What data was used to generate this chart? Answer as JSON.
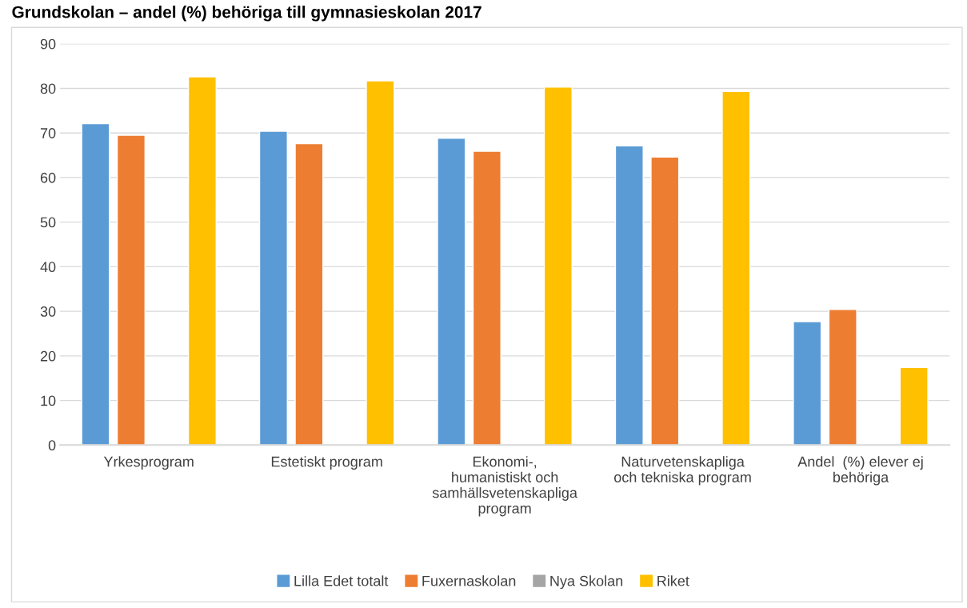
{
  "chart_data": {
    "type": "bar",
    "title": "Grundskolan – andel (%) behöriga till gymnasieskolan 2017",
    "categories": [
      "Yrkesprogram",
      "Estetiskt program",
      "Ekonomi-,\nhumanistiskt och\nsamhällsvetenskapliga\nprogram",
      "Naturvetenskapliga\noch tekniska program",
      "Andel  (%) elever ej\nbehöriga"
    ],
    "series": [
      {
        "name": "Lilla Edet totalt",
        "color": "#5b9bd5",
        "values": [
          72.1,
          70.4,
          68.8,
          67.1,
          27.7
        ]
      },
      {
        "name": "Fuxernaskolan",
        "color": "#ed7d31",
        "values": [
          69.5,
          67.6,
          65.9,
          64.6,
          30.4
        ]
      },
      {
        "name": "Nya Skolan",
        "color": "#a5a5a5",
        "values": [
          null,
          null,
          null,
          null,
          null
        ]
      },
      {
        "name": "Riket",
        "color": "#ffc000",
        "values": [
          82.6,
          81.7,
          80.3,
          79.3,
          17.4
        ]
      }
    ],
    "ylim": [
      0,
      90
    ],
    "yticks": [
      0,
      10,
      20,
      30,
      40,
      50,
      60,
      70,
      80,
      90
    ],
    "grid": "y",
    "legend": "bottom"
  }
}
